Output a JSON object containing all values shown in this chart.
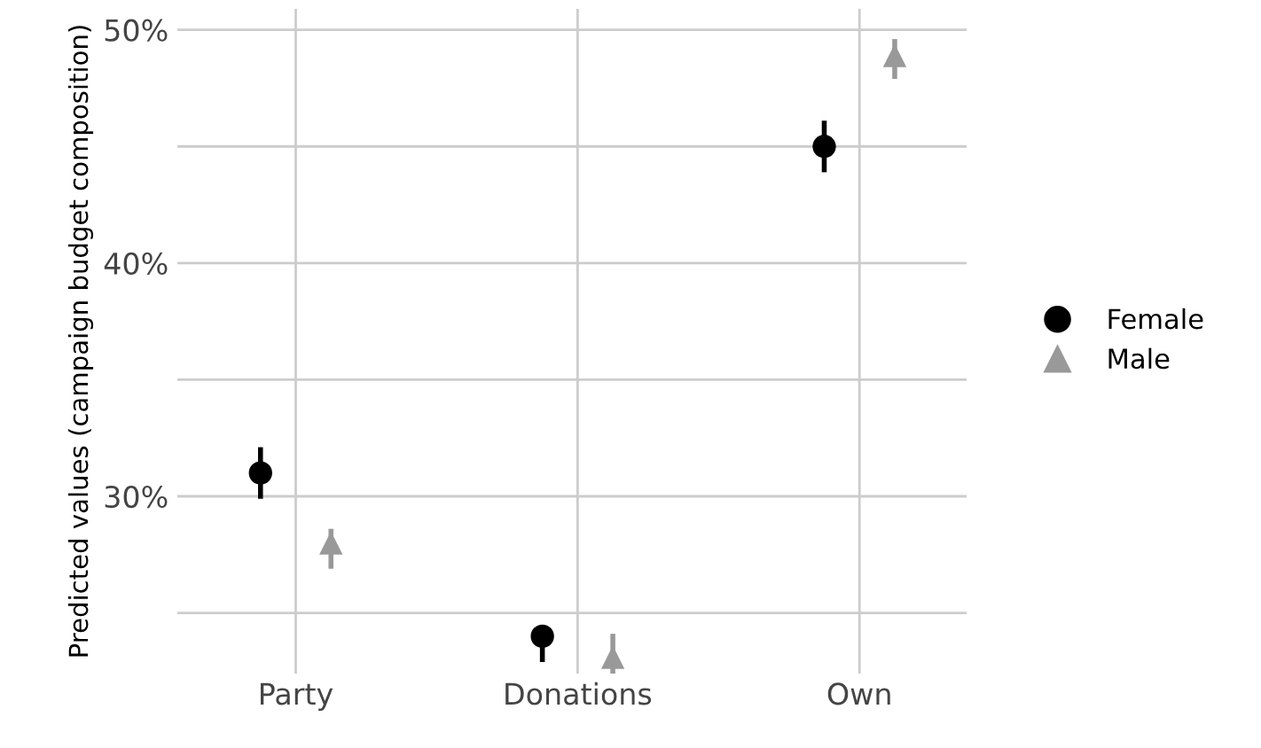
{
  "chart_data": {
    "type": "scatter",
    "ylabel": "Predicted values (campaign budget composition)",
    "categories": [
      "Party",
      "Donations",
      "Own"
    ],
    "series": [
      {
        "name": "Female",
        "color": "#000000",
        "marker": "circle",
        "values": [
          31.0,
          24.0,
          45.0
        ],
        "errors": [
          [
            30.0,
            32.0
          ],
          [
            23.0,
            24.3
          ],
          [
            44.0,
            46.0
          ]
        ]
      },
      {
        "name": "Male",
        "color": "#999999",
        "marker": "triangle",
        "values": [
          28.0,
          23.1,
          48.9
        ],
        "errors": [
          [
            27.0,
            28.5
          ],
          [
            22.5,
            24.0
          ],
          [
            48.0,
            49.5
          ]
        ]
      }
    ],
    "ylim": [
      22.4,
      50.9
    ],
    "yticks": [
      {
        "value": 25,
        "label": null
      },
      {
        "value": 30,
        "label": "30%"
      },
      {
        "value": 35,
        "label": null
      },
      {
        "value": 40,
        "label": "40%"
      },
      {
        "value": 45,
        "label": null
      },
      {
        "value": 50,
        "label": "50%"
      }
    ],
    "grid": true,
    "legend": "right"
  }
}
